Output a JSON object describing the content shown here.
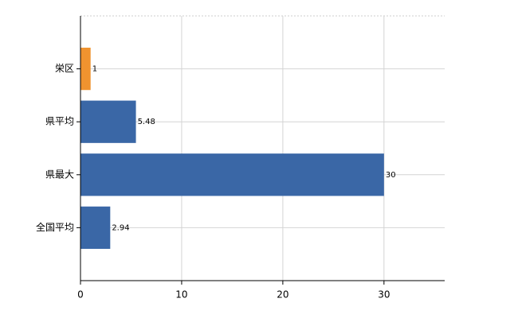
{
  "chart_data": {
    "type": "hbar",
    "categories": [
      "栄区",
      "県平均",
      "県最大",
      "全国平均"
    ],
    "values": [
      1,
      5.48,
      30,
      2.94
    ],
    "colors": [
      "#f0932f",
      "#3a67a6",
      "#3a67a6",
      "#3a67a6"
    ],
    "xlim": [
      0,
      36
    ],
    "xticks": [
      0,
      10,
      20,
      30
    ],
    "grid": true
  }
}
